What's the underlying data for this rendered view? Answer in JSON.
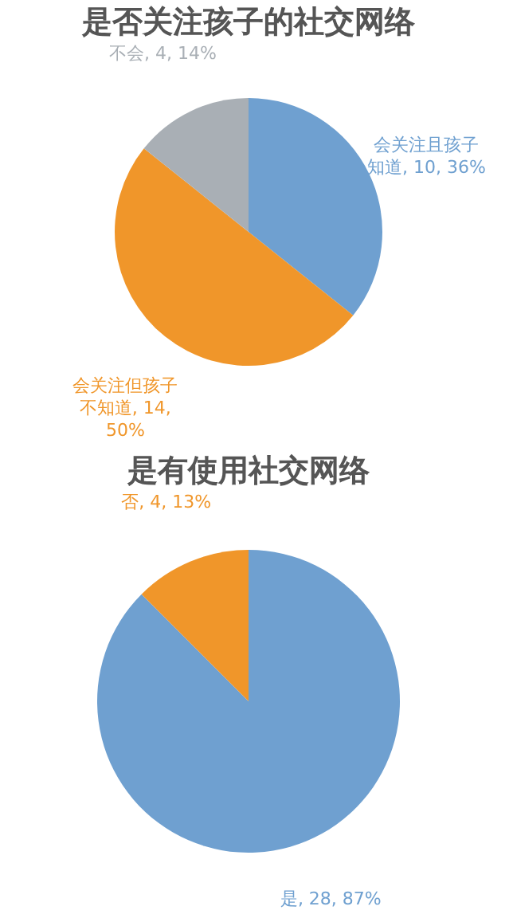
{
  "chart_data": [
    {
      "type": "pie",
      "title": "是否关注孩子的社交网络",
      "categories": [
        "会关注且孩子知道",
        "会关注但孩子不知道",
        "不会"
      ],
      "values": [
        10,
        14,
        4
      ],
      "colors": [
        "#6fa0d0",
        "#f0962a",
        "#a9afb5"
      ],
      "value_labels": [
        "10, 36%",
        "14, 50%",
        "4, 14%"
      ]
    },
    {
      "type": "pie",
      "title": "是有使用社交网络",
      "categories": [
        "是",
        "否"
      ],
      "values": [
        28,
        4
      ],
      "colors": [
        "#6fa0d0",
        "#f0962a"
      ],
      "value_labels": [
        "28, 87%",
        "4, 13%"
      ]
    }
  ]
}
